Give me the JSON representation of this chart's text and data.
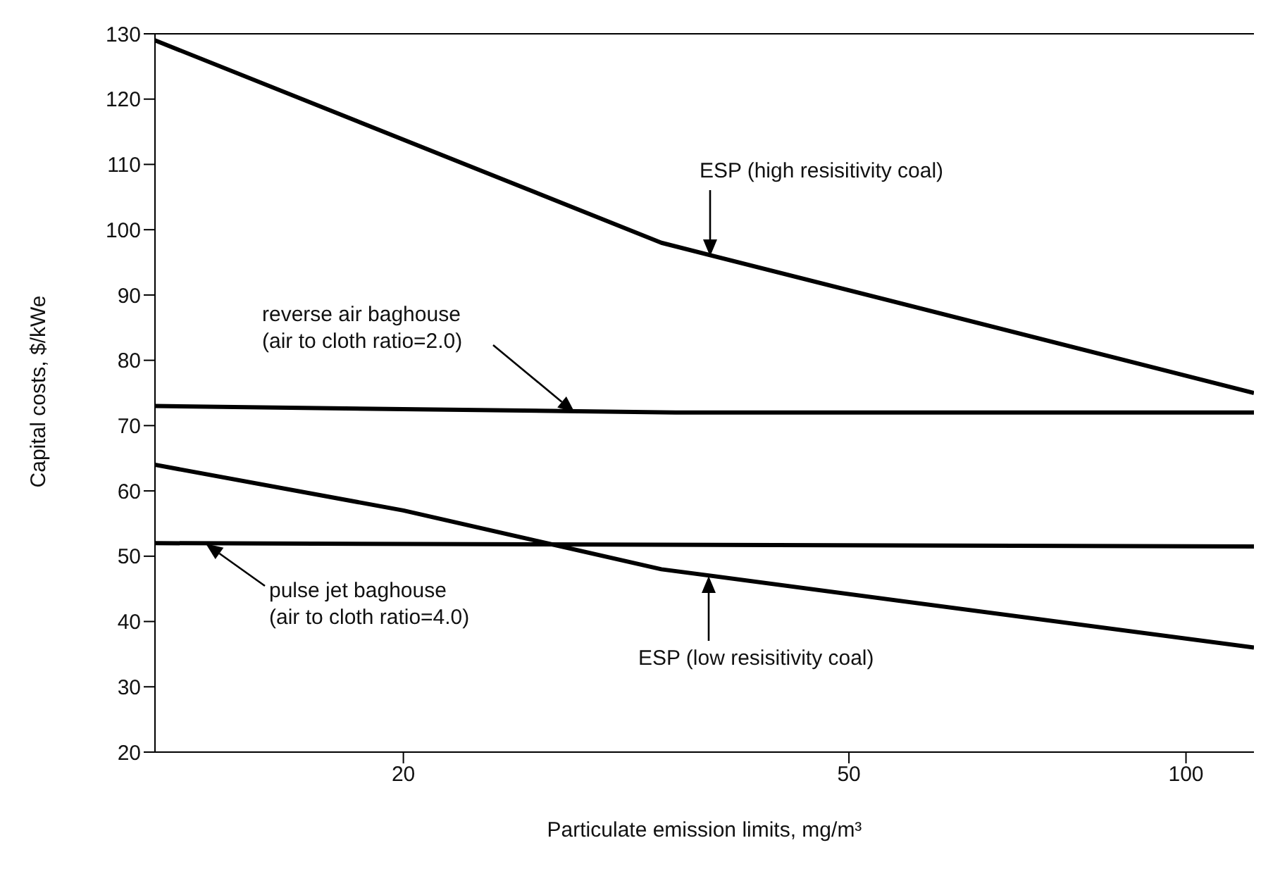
{
  "chart_data": {
    "type": "line",
    "xlabel": "Particulate emission limits, mg/m³",
    "ylabel": "Capital costs, $/kWe",
    "log": "x",
    "xlim": [
      12,
      115
    ],
    "xticks": [
      20,
      50,
      100
    ],
    "ylim": [
      20,
      130
    ],
    "yticks": [
      20,
      30,
      40,
      50,
      60,
      70,
      80,
      90,
      100,
      110,
      120,
      130
    ],
    "line_style": "solid",
    "series": [
      {
        "color": "#000000",
        "x": [
          12,
          34,
          115
        ],
        "values": [
          129,
          98,
          75
        ]
      },
      {
        "color": "#000000",
        "x": [
          12,
          35,
          115
        ],
        "values": [
          73,
          72,
          72
        ]
      },
      {
        "color": "#000000",
        "x": [
          12,
          20,
          34,
          115
        ],
        "values": [
          64,
          57,
          48,
          36
        ]
      },
      {
        "color": "#000000",
        "x": [
          12,
          115
        ],
        "values": [
          52,
          51.5
        ]
      }
    ],
    "annotations": [
      "ESP (high resisitivity coal)",
      "reverse air baghouse\n(air to cloth ratio=2.0)",
      "pulse jet baghouse\n(air to cloth ratio=4.0)",
      "ESP (low resisitivity coal)"
    ]
  }
}
